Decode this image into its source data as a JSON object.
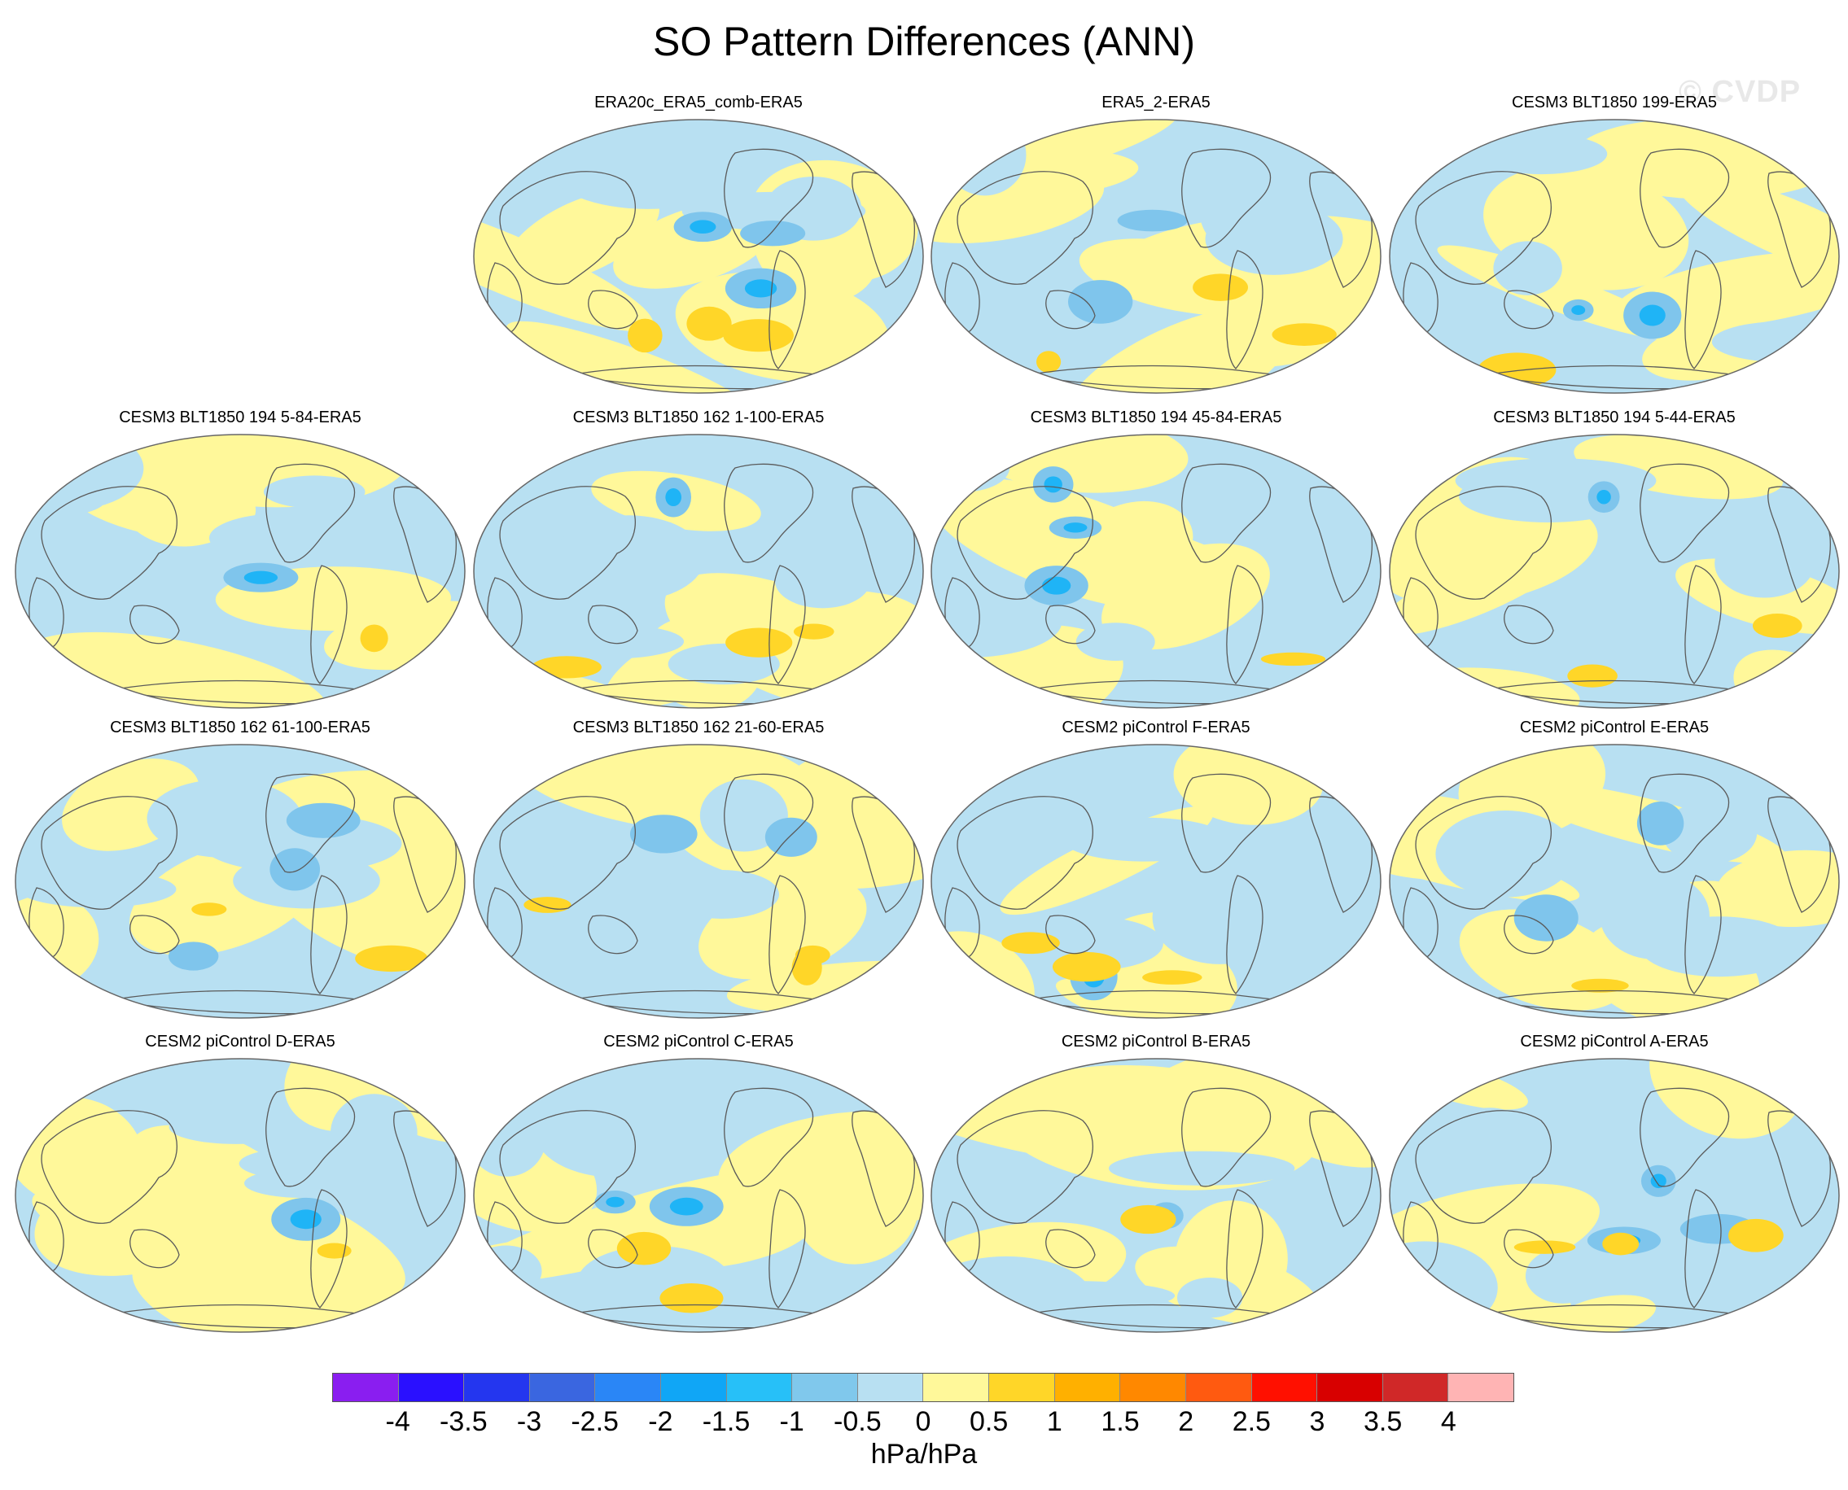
{
  "title": "SO Pattern Differences (ANN)",
  "watermark": "© CVDP",
  "colors": {
    "ocean_neutral": "#b8e0f2",
    "land_outline": "#5a5a5a",
    "map_edge": "#666666",
    "pos_weak": "#fff89a",
    "pos_mid": "#ffd628",
    "pos_strong": "#ffb000",
    "neg_weak": "#b8e0f2",
    "neg_mid": "#7fc5ec",
    "neg_strong": "#1fb4f6"
  },
  "panels": [
    {
      "title": "ERA20c_ERA5_comb-ERA5"
    },
    {
      "title": "ERA5_2-ERA5"
    },
    {
      "title": "CESM3 BLT1850 199-ERA5"
    },
    {
      "title": "CESM3 BLT1850 194 5-84-ERA5"
    },
    {
      "title": "CESM3 BLT1850 162 1-100-ERA5"
    },
    {
      "title": "CESM3 BLT1850 194 45-84-ERA5"
    },
    {
      "title": "CESM3 BLT1850 194 5-44-ERA5"
    },
    {
      "title": "CESM3 BLT1850 162 61-100-ERA5"
    },
    {
      "title": "CESM3 BLT1850 162 21-60-ERA5"
    },
    {
      "title": "CESM2 piControl F-ERA5"
    },
    {
      "title": "CESM2 piControl E-ERA5"
    },
    {
      "title": "CESM2 piControl D-ERA5"
    },
    {
      "title": "CESM2 piControl C-ERA5"
    },
    {
      "title": "CESM2 piControl B-ERA5"
    },
    {
      "title": "CESM2 piControl A-ERA5"
    }
  ],
  "colorbar": {
    "colors": [
      "#8a1ef0",
      "#2a10ff",
      "#2436ef",
      "#3a66e0",
      "#2a86f6",
      "#10a6f6",
      "#27c0f8",
      "#80c8ec",
      "#b8e0f2",
      "#fff89a",
      "#ffd628",
      "#ffb000",
      "#ff8800",
      "#ff5a10",
      "#ff1000",
      "#d80000",
      "#d02828",
      "#ffb4b4"
    ],
    "ticks": [
      "-4",
      "-3.5",
      "-3",
      "-2.5",
      "-2",
      "-1.5",
      "-1",
      "-0.5",
      "0",
      "0.5",
      "1",
      "1.5",
      "2",
      "2.5",
      "3",
      "3.5",
      "4"
    ],
    "units": "hPa/hPa"
  }
}
